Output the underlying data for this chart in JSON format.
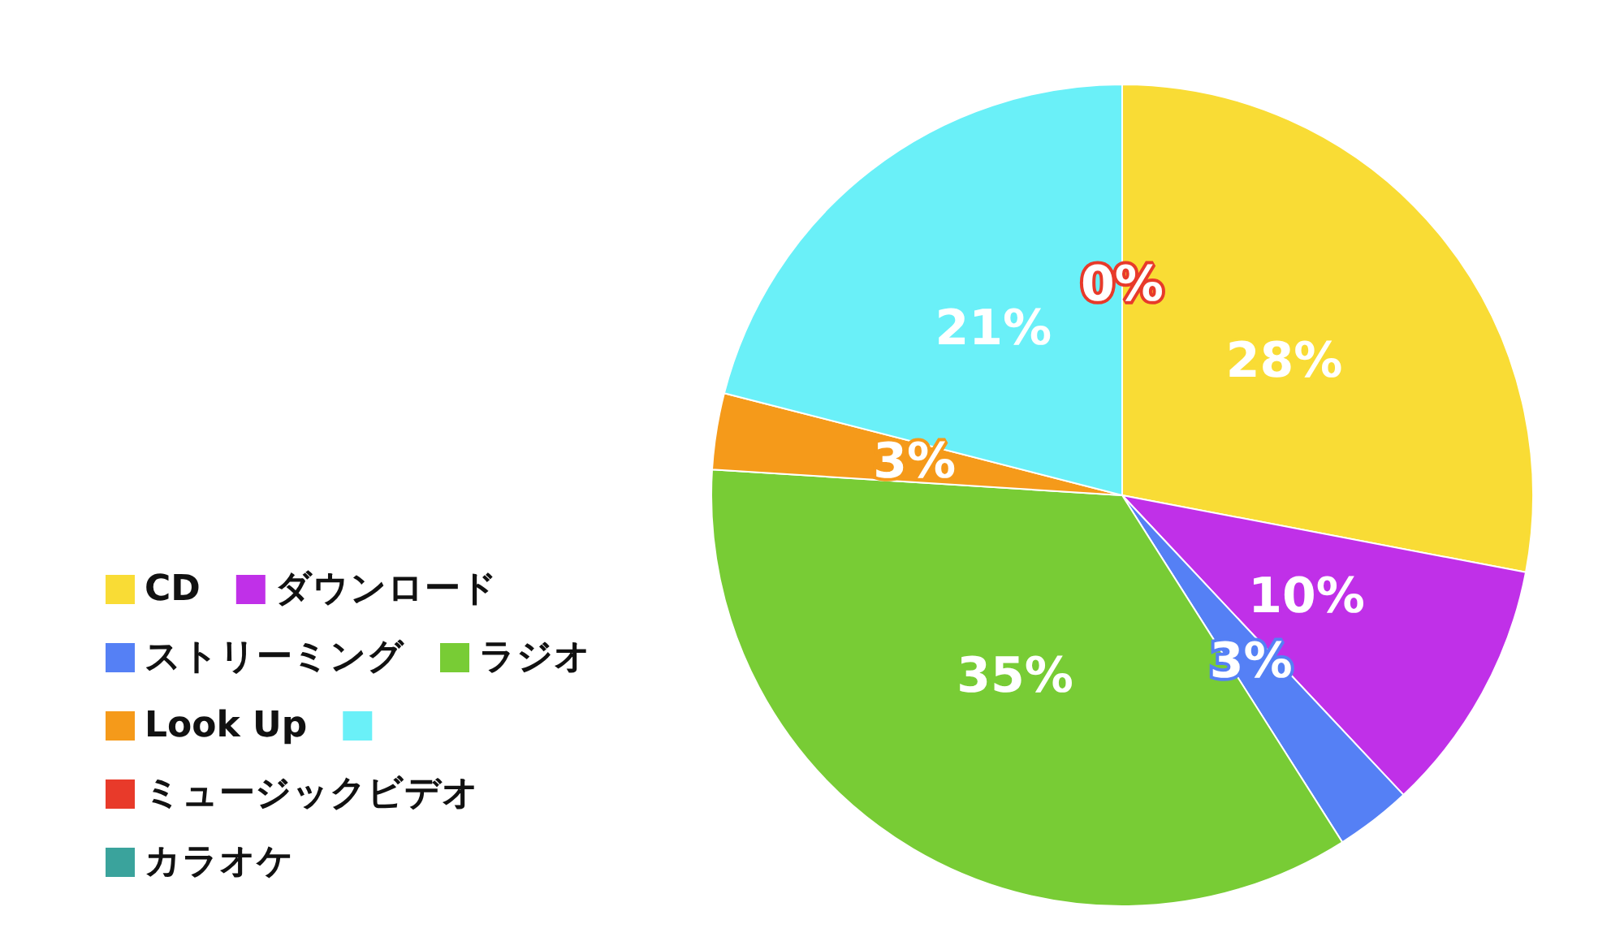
{
  "chart_data": {
    "type": "pie",
    "categories": [
      "CD",
      "ダウンロード",
      "ストリーミング",
      "ラジオ",
      "Look Up",
      null,
      "ミュージックビデオ",
      "カラオケ"
    ],
    "values": [
      28,
      10,
      3,
      35,
      3,
      21,
      0,
      0
    ],
    "colors": [
      "#f9dc35",
      "#c030e8",
      "#5580f5",
      "#78cc35",
      "#f59a1a",
      "#6af0f8",
      "#e83a2a",
      "#3aa39c"
    ],
    "value_labels": [
      "28%",
      "10%",
      "3%",
      "35%",
      "3%",
      "21%",
      "0%",
      null
    ],
    "legend": "bottom left"
  }
}
